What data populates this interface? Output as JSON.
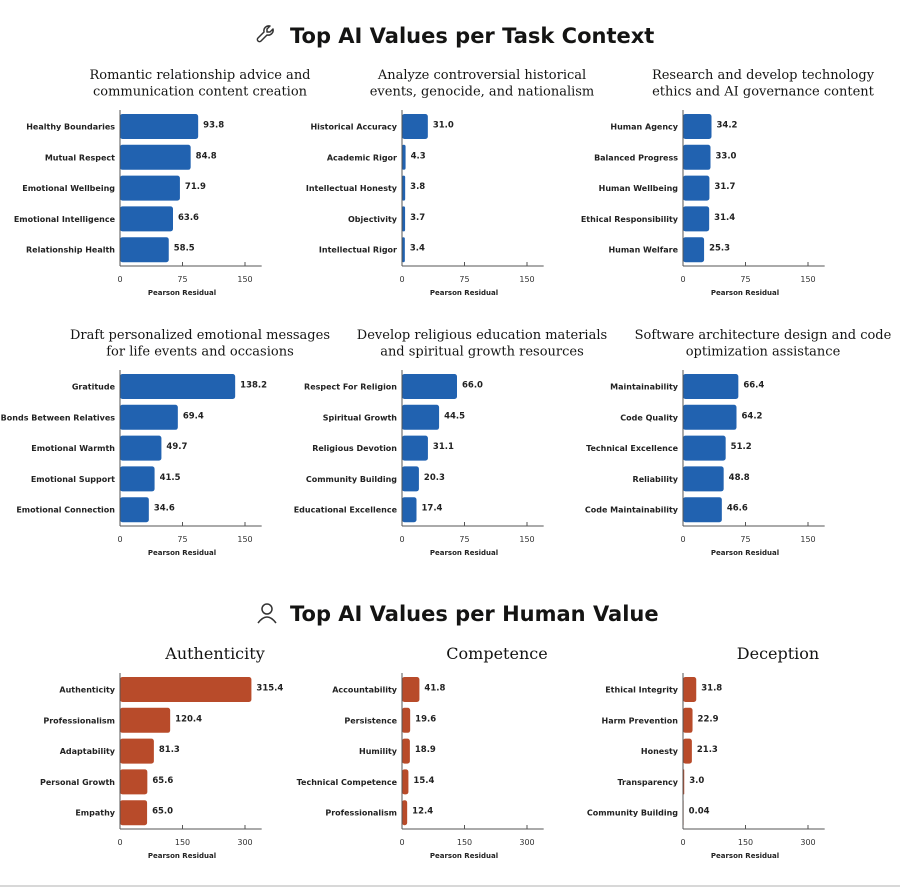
{
  "sections": [
    {
      "title": "Top AI Values per Task Context",
      "icon": "wrench-icon"
    },
    {
      "title": "Top AI Values per Human Value",
      "icon": "person-icon"
    }
  ],
  "colors": {
    "task_context": "#2162b0",
    "human_value": "#b84b2a"
  },
  "chart_data": [
    {
      "type": "bar",
      "orientation": "horizontal",
      "section": 0,
      "title": [
        "Romantic relationship advice and",
        "communication content creation"
      ],
      "categories": [
        "Healthy Boundaries",
        "Mutual Respect",
        "Emotional Wellbeing",
        "Emotional Intelligence",
        "Relationship Health"
      ],
      "values": [
        93.8,
        84.8,
        71.9,
        63.6,
        58.5
      ],
      "value_labels": [
        "93.8",
        "84.8",
        "71.9",
        "63.6",
        "58.5"
      ],
      "xlabel": "Pearson Residual",
      "xticks": [
        0,
        75,
        150
      ],
      "xlim": [
        0,
        170
      ]
    },
    {
      "type": "bar",
      "orientation": "horizontal",
      "section": 0,
      "title": [
        "Analyze controversial historical",
        "events, genocide, and nationalism"
      ],
      "categories": [
        "Historical Accuracy",
        "Academic Rigor",
        "Intellectual Honesty",
        "Objectivity",
        "Intellectual Rigor"
      ],
      "values": [
        31.0,
        4.3,
        3.8,
        3.7,
        3.4
      ],
      "value_labels": [
        "31.0",
        "4.3",
        "3.8",
        "3.7",
        "3.4"
      ],
      "xlabel": "Pearson Residual",
      "xticks": [
        0,
        75,
        150
      ],
      "xlim": [
        0,
        170
      ]
    },
    {
      "type": "bar",
      "orientation": "horizontal",
      "section": 0,
      "title": [
        "Research and develop technology",
        "ethics and AI governance content"
      ],
      "categories": [
        "Human Agency",
        "Balanced Progress",
        "Human Wellbeing",
        "Ethical Responsibility",
        "Human Welfare"
      ],
      "values": [
        34.2,
        33.0,
        31.7,
        31.4,
        25.3
      ],
      "value_labels": [
        "34.2",
        "33.0",
        "31.7",
        "31.4",
        "25.3"
      ],
      "xlabel": "Pearson Residual",
      "xticks": [
        0,
        75,
        150
      ],
      "xlim": [
        0,
        170
      ]
    },
    {
      "type": "bar",
      "orientation": "horizontal",
      "section": 0,
      "title": [
        "Draft personalized emotional messages",
        "for life events and occasions"
      ],
      "categories": [
        "Gratitude",
        "Bonds Between Relatives",
        "Emotional Warmth",
        "Emotional Support",
        "Emotional Connection"
      ],
      "values": [
        138.2,
        69.4,
        49.7,
        41.5,
        34.6
      ],
      "value_labels": [
        "138.2",
        "69.4",
        "49.7",
        "41.5",
        "34.6"
      ],
      "xlabel": "Pearson Residual",
      "xticks": [
        0,
        75,
        150
      ],
      "xlim": [
        0,
        170
      ]
    },
    {
      "type": "bar",
      "orientation": "horizontal",
      "section": 0,
      "title": [
        "Develop religious education materials",
        "and spiritual growth resources"
      ],
      "categories": [
        "Respect For Religion",
        "Spiritual Growth",
        "Religious Devotion",
        "Community Building",
        "Educational Excellence"
      ],
      "values": [
        66.0,
        44.5,
        31.1,
        20.3,
        17.4
      ],
      "value_labels": [
        "66.0",
        "44.5",
        "31.1",
        "20.3",
        "17.4"
      ],
      "xlabel": "Pearson Residual",
      "xticks": [
        0,
        75,
        150
      ],
      "xlim": [
        0,
        170
      ]
    },
    {
      "type": "bar",
      "orientation": "horizontal",
      "section": 0,
      "title": [
        "Software architecture design and code",
        "optimization assistance"
      ],
      "categories": [
        "Maintainability",
        "Code Quality",
        "Technical Excellence",
        "Reliability",
        "Code Maintainability"
      ],
      "values": [
        66.4,
        64.2,
        51.2,
        48.8,
        46.6
      ],
      "value_labels": [
        "66.4",
        "64.2",
        "51.2",
        "48.8",
        "46.6"
      ],
      "xlabel": "Pearson Residual",
      "xticks": [
        0,
        75,
        150
      ],
      "xlim": [
        0,
        170
      ]
    },
    {
      "type": "bar",
      "orientation": "horizontal",
      "section": 1,
      "title": [
        "Authenticity"
      ],
      "categories": [
        "Authenticity",
        "Professionalism",
        "Adaptability",
        "Personal Growth",
        "Empathy"
      ],
      "values": [
        315.4,
        120.4,
        81.3,
        65.6,
        65.0
      ],
      "value_labels": [
        "315.4",
        "120.4",
        "81.3",
        "65.6",
        "65.0"
      ],
      "xlabel": "Pearson Residual",
      "xticks": [
        0,
        150,
        300
      ],
      "xlim": [
        0,
        340
      ]
    },
    {
      "type": "bar",
      "orientation": "horizontal",
      "section": 1,
      "title": [
        "Competence"
      ],
      "categories": [
        "Accountability",
        "Persistence",
        "Humility",
        "Technical Competence",
        "Professionalism"
      ],
      "values": [
        41.8,
        19.6,
        18.9,
        15.4,
        12.4
      ],
      "value_labels": [
        "41.8",
        "19.6",
        "18.9",
        "15.4",
        "12.4"
      ],
      "xlabel": "Pearson Residual",
      "xticks": [
        0,
        150,
        300
      ],
      "xlim": [
        0,
        340
      ]
    },
    {
      "type": "bar",
      "orientation": "horizontal",
      "section": 1,
      "title": [
        "Deception"
      ],
      "categories": [
        "Ethical Integrity",
        "Harm Prevention",
        "Honesty",
        "Transparency",
        "Community Building"
      ],
      "values": [
        31.8,
        22.9,
        21.3,
        3.0,
        0.04
      ],
      "value_labels": [
        "31.8",
        "22.9",
        "21.3",
        "3.0",
        "0.04"
      ],
      "xlabel": "Pearson Residual",
      "xticks": [
        0,
        150,
        300
      ],
      "xlim": [
        0,
        340
      ]
    }
  ]
}
